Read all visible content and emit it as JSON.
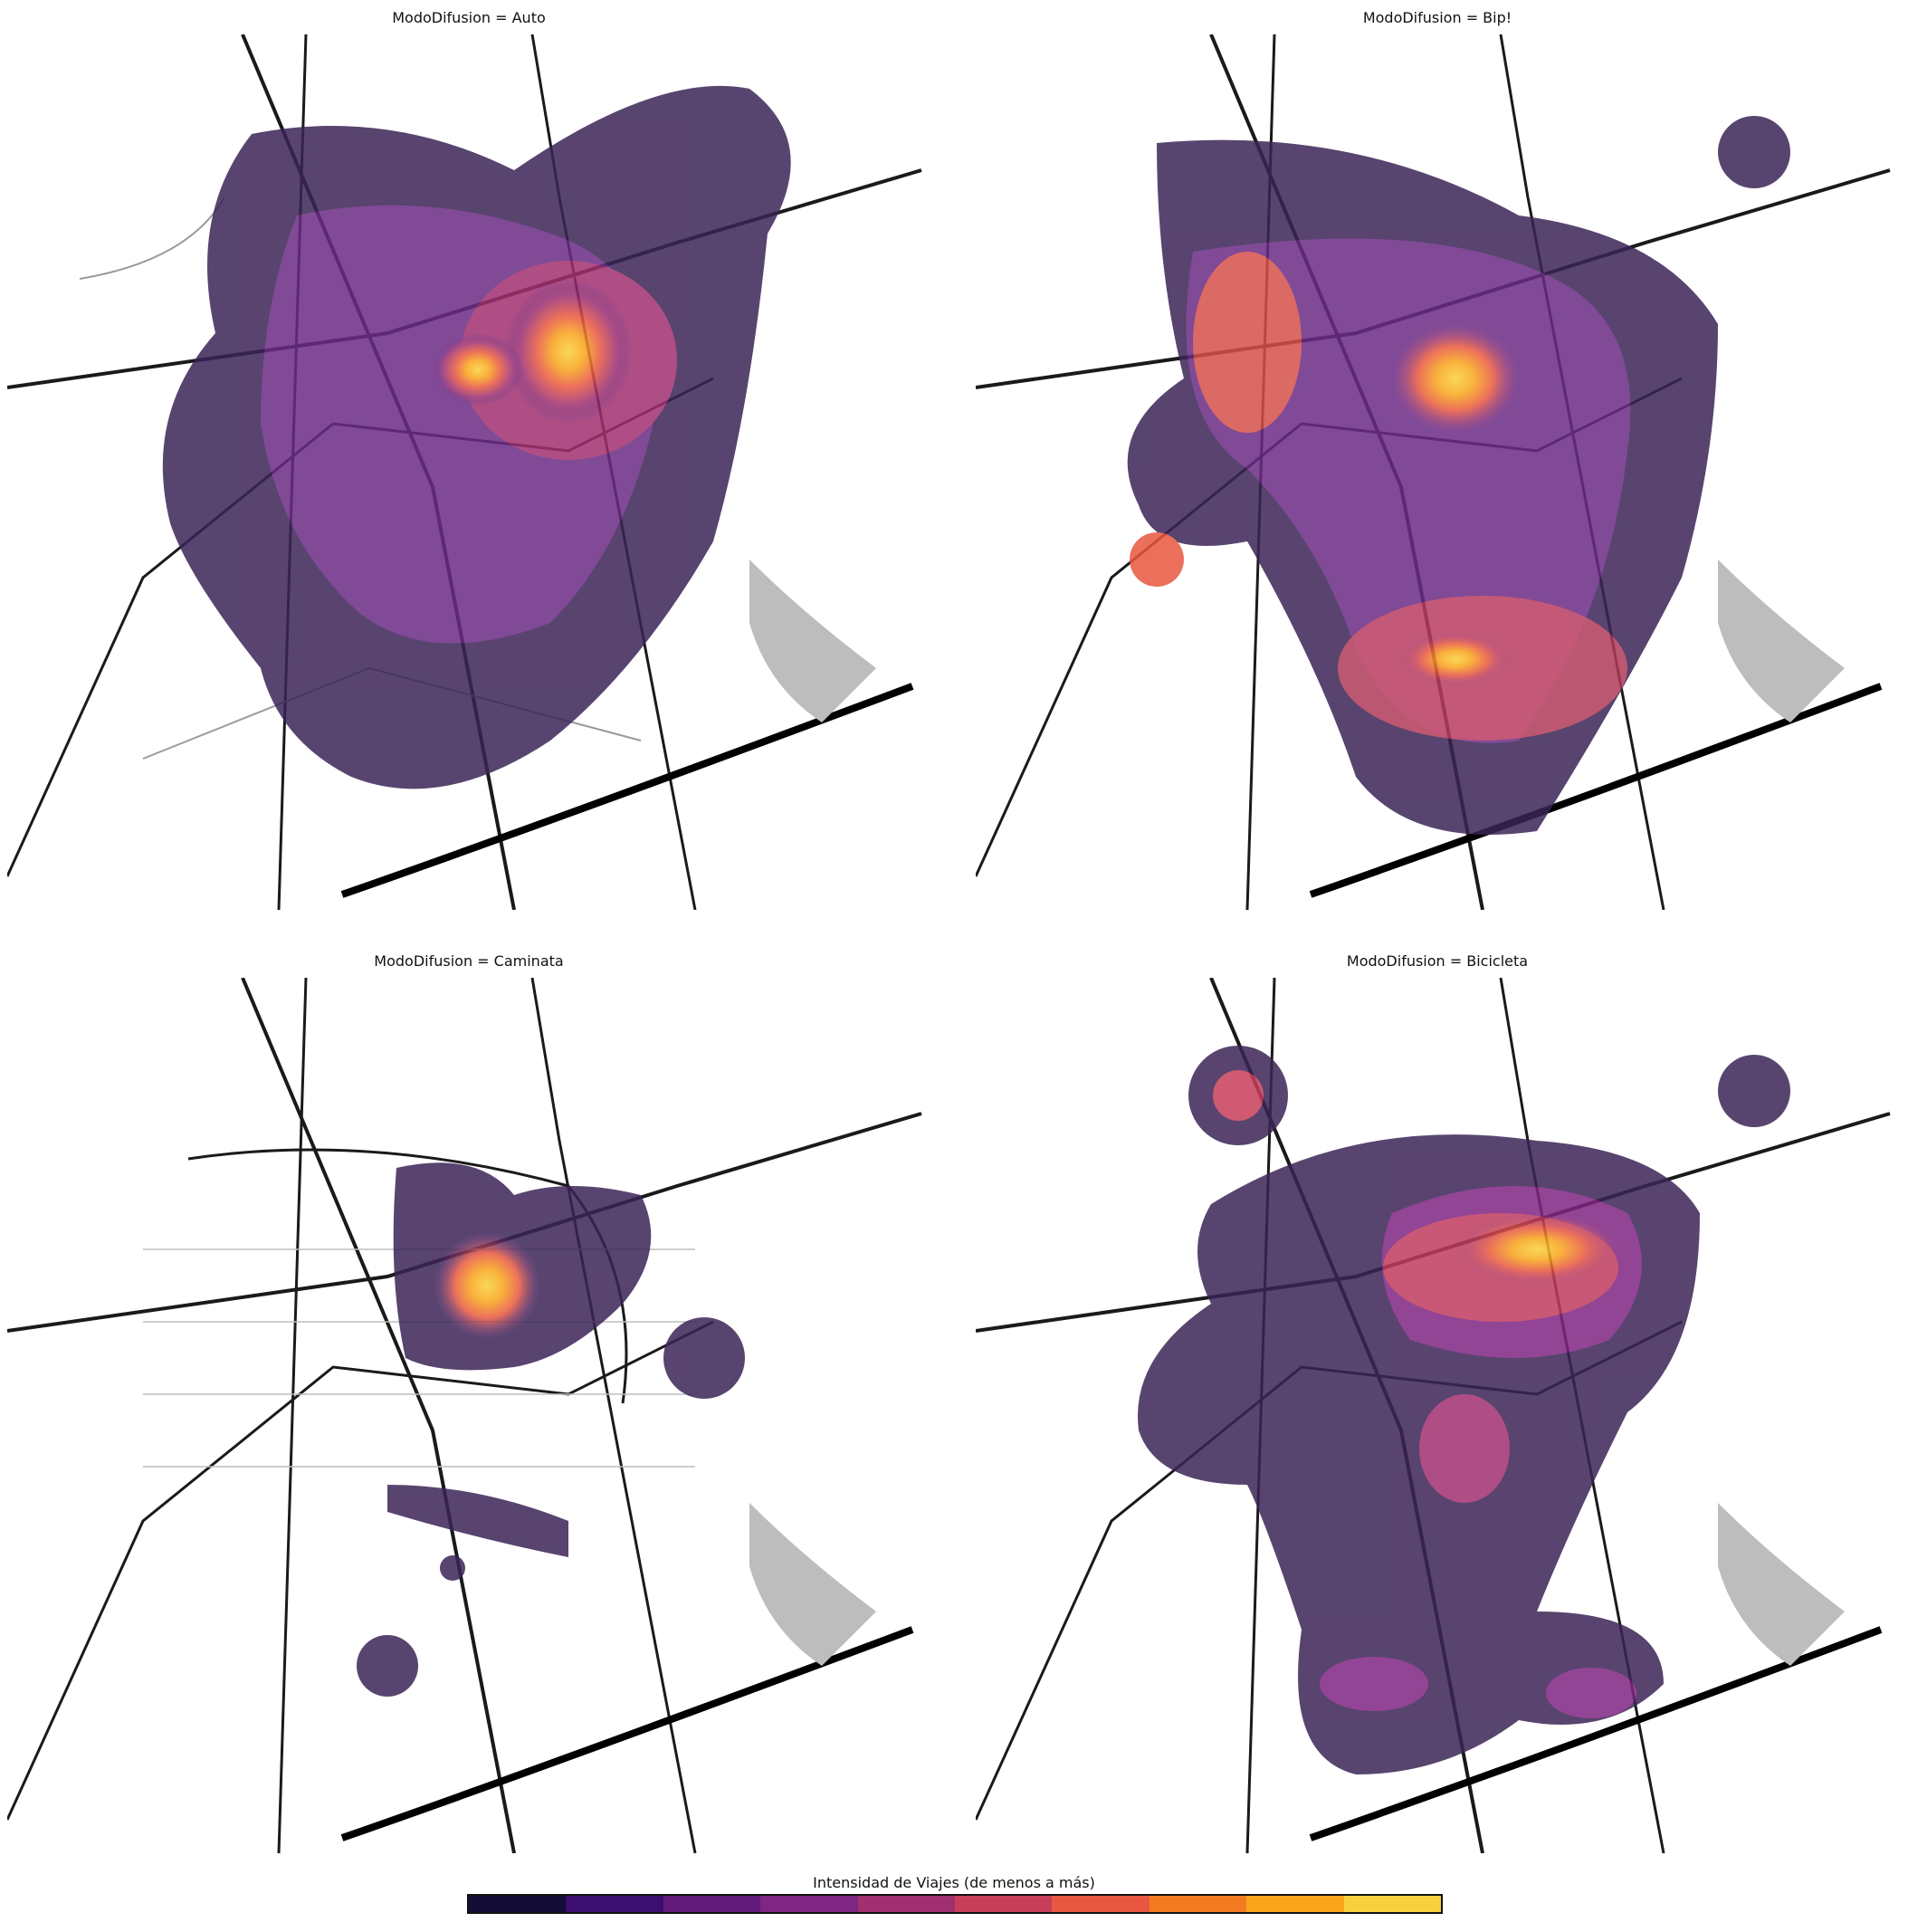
{
  "panels": [
    {
      "title": "ModoDifusion = Auto"
    },
    {
      "title": "ModoDifusion = Bip!"
    },
    {
      "title": "ModoDifusion = Caminata"
    },
    {
      "title": "ModoDifusion = Bicicleta"
    }
  ],
  "colorbar": {
    "title": "Intensidad de Viajes (de menos a más)",
    "colors": [
      "#140d35",
      "#3b0f70",
      "#611a7a",
      "#7f2582",
      "#a0306f",
      "#c73e5a",
      "#e8573f",
      "#f47a22",
      "#f9a51a",
      "#f7d13d"
    ]
  },
  "map_colors": {
    "road": "#1a1a1a",
    "minor_road": "#9a9a9a",
    "water": "#000000",
    "park": "#bdbdbd"
  }
}
